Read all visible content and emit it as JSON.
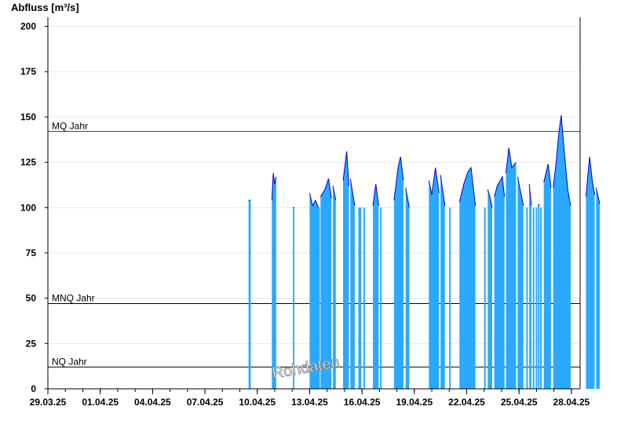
{
  "chart_data": {
    "type": "area",
    "ylabel": "Abfluss [m³/s]",
    "ylim": [
      0,
      205
    ],
    "yticks": [
      0,
      25,
      50,
      75,
      100,
      125,
      150,
      175,
      200
    ],
    "xlim": [
      "2025-03-29",
      "2025-04-28T12:00"
    ],
    "xticks": [
      "29.03.25",
      "01.04.25",
      "04.04.25",
      "07.04.25",
      "10.04.25",
      "13.04.25",
      "16.04.25",
      "19.04.25",
      "22.04.25",
      "25.04.25",
      "28.04.25"
    ],
    "grid": true,
    "fill_color": "#29a9ff",
    "line_color": "#0000cc",
    "reference_lines": [
      {
        "label": "MQ Jahr",
        "value": 142,
        "color": "#006400"
      },
      {
        "label": "MNQ Jahr",
        "value": 47,
        "color": "#000000"
      },
      {
        "label": "NQ Jahr",
        "value": 12,
        "color": "#000000"
      }
    ],
    "watermark": "Rohdaten",
    "segments": [
      [
        [
          "2025-04-09T12:00",
          104
        ],
        [
          "2025-04-09T15:00",
          104
        ]
      ],
      [
        [
          "2025-04-10T20:00",
          104
        ],
        [
          "2025-04-10T22:00",
          119
        ],
        [
          "2025-04-11T00:00",
          113
        ],
        [
          "2025-04-11T02:00",
          117
        ]
      ],
      [
        [
          "2025-04-12T01:00",
          100
        ],
        [
          "2025-04-12T03:00",
          100
        ]
      ],
      [
        [
          "2025-04-13T00:00",
          108
        ],
        [
          "2025-04-13T04:00",
          101
        ],
        [
          "2025-04-13T08:00",
          104
        ],
        [
          "2025-04-13T12:00",
          100
        ]
      ],
      [
        [
          "2025-04-13T15:00",
          106
        ],
        [
          "2025-04-13T21:00",
          110
        ],
        [
          "2025-04-14T02:00",
          116
        ],
        [
          "2025-04-14T06:00",
          105
        ]
      ],
      [
        [
          "2025-04-14T08:00",
          112
        ],
        [
          "2025-04-14T12:00",
          104
        ]
      ],
      [
        [
          "2025-04-14T22:00",
          115
        ],
        [
          "2025-04-15T03:00",
          131
        ],
        [
          "2025-04-15T06:00",
          112
        ]
      ],
      [
        [
          "2025-04-15T08:00",
          116
        ],
        [
          "2025-04-15T14:00",
          101
        ]
      ],
      [
        [
          "2025-04-16T15:00",
          101
        ],
        [
          "2025-04-16T19:00",
          113
        ],
        [
          "2025-04-16T23:00",
          101
        ]
      ],
      [
        [
          "2025-04-17T20:00",
          104
        ],
        [
          "2025-04-18T02:00",
          123
        ],
        [
          "2025-04-18T05:00",
          128
        ],
        [
          "2025-04-18T09:00",
          115
        ]
      ],
      [
        [
          "2025-04-18T12:00",
          111
        ],
        [
          "2025-04-18T17:00",
          100
        ]
      ],
      [
        [
          "2025-04-19T20:00",
          115
        ],
        [
          "2025-04-20T00:00",
          107
        ],
        [
          "2025-04-20T05:00",
          122
        ],
        [
          "2025-04-20T10:00",
          108
        ]
      ],
      [
        [
          "2025-04-20T12:00",
          118
        ],
        [
          "2025-04-20T18:00",
          101
        ]
      ],
      [
        [
          "2025-04-21T14:00",
          103
        ],
        [
          "2025-04-21T20:00",
          113
        ],
        [
          "2025-04-22T02:00",
          120
        ],
        [
          "2025-04-22T06:00",
          122
        ],
        [
          "2025-04-22T12:00",
          101
        ]
      ],
      [
        [
          "2025-04-23T05:00",
          110
        ],
        [
          "2025-04-23T09:00",
          104
        ],
        [
          "2025-04-23T11:00",
          100
        ]
      ],
      [
        [
          "2025-04-23T14:00",
          106
        ],
        [
          "2025-04-23T18:00",
          112
        ],
        [
          "2025-04-24T01:00",
          117
        ],
        [
          "2025-04-24T04:00",
          106
        ]
      ],
      [
        [
          "2025-04-24T06:00",
          119
        ],
        [
          "2025-04-24T10:00",
          133
        ],
        [
          "2025-04-24T14:00",
          122
        ],
        [
          "2025-04-24T20:00",
          125
        ]
      ],
      [
        [
          "2025-04-24T22:00",
          117
        ],
        [
          "2025-04-25T06:00",
          101
        ]
      ],
      [
        [
          "2025-04-25T14:00",
          113
        ],
        [
          "2025-04-25T17:00",
          101
        ]
      ],
      [
        [
          "2025-04-26T02:00",
          101
        ],
        [
          "2025-04-26T04:00",
          102
        ]
      ],
      [
        [
          "2025-04-26T10:00",
          114
        ],
        [
          "2025-04-26T16:00",
          124
        ],
        [
          "2025-04-26T20:00",
          111
        ]
      ],
      [
        [
          "2025-04-26T23:00",
          111
        ],
        [
          "2025-04-27T03:00",
          125
        ],
        [
          "2025-04-27T07:00",
          142
        ],
        [
          "2025-04-27T10:00",
          151
        ],
        [
          "2025-04-27T14:00",
          132
        ],
        [
          "2025-04-27T19:00",
          110
        ],
        [
          "2025-04-27T23:00",
          101
        ]
      ],
      [
        [
          "2025-04-28T20:00",
          106
        ],
        [
          "2025-04-29T01:00",
          128
        ],
        [
          "2025-04-29T05:00",
          114
        ],
        [
          "2025-04-29T08:00",
          107
        ]
      ],
      [
        [
          "2025-04-29T10:00",
          111
        ],
        [
          "2025-04-29T15:00",
          102
        ]
      ]
    ],
    "spikes": [
      [
        "2025-04-13T13:00",
        100
      ],
      [
        "2025-04-15T20:00",
        100
      ],
      [
        "2025-04-15T22:00",
        100
      ],
      [
        "2025-04-16T03:00",
        100
      ],
      [
        "2025-04-17T02:00",
        100
      ],
      [
        "2025-04-21T01:00",
        100
      ],
      [
        "2025-04-23T01:00",
        100
      ],
      [
        "2025-04-23T20:00",
        100
      ],
      [
        "2025-04-25T11:00",
        100
      ],
      [
        "2025-04-25T20:00",
        100
      ],
      [
        "2025-04-26T00:00",
        100
      ],
      [
        "2025-04-26T06:00",
        100
      ]
    ]
  }
}
